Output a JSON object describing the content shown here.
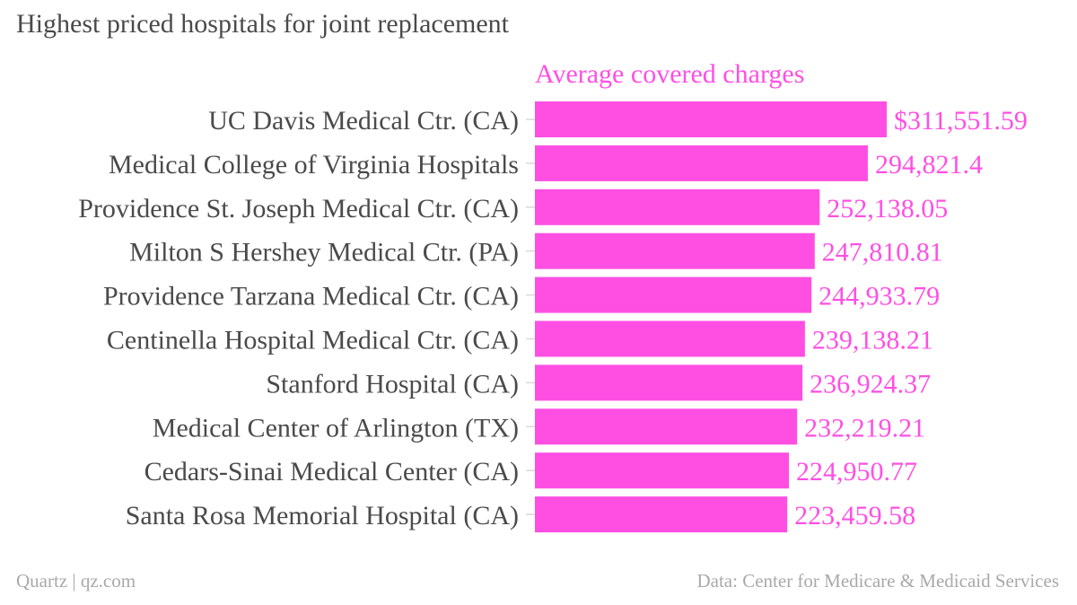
{
  "title": "Highest priced hospitals for joint replacement",
  "footer": {
    "source_left": "Quartz | qz.com",
    "source_right": "Data: Center for Medicare & Medicaid Services"
  },
  "colors": {
    "bar": "#ff4fe3",
    "label": "#4a4a4a",
    "value": "#ff4fe3",
    "tick": "#d9d9d9"
  },
  "chart_data": {
    "type": "bar",
    "orientation": "horizontal",
    "series": [
      {
        "name": "Average covered charges",
        "values": [
          311551.59,
          294821.4,
          252138.05,
          247810.81,
          244933.79,
          239138.21,
          236924.37,
          232219.21,
          224950.77,
          223459.58
        ],
        "labels": [
          "$311,551.59",
          "294,821.4",
          "252,138.05",
          "247,810.81",
          "244,933.79",
          "239,138.21",
          "236,924.37",
          "232,219.21",
          "224,950.77",
          "223,459.58"
        ]
      }
    ],
    "categories": [
      "UC Davis Medical Ctr. (CA)",
      "Medical College of Virginia Hospitals",
      "Providence St. Joseph Medical Ctr. (CA)",
      "Milton S Hershey Medical Ctr. (PA)",
      "Providence Tarzana Medical Ctr. (CA)",
      "Centinella Hospital Medical Ctr. (CA)",
      "Stanford Hospital (CA)",
      "Medical Center of Arlington (TX)",
      "Cedars-Sinai Medical Center (CA)",
      "Santa Rosa Memorial Hospital (CA)"
    ],
    "xlim": [
      0,
      311551.59
    ],
    "grid": false,
    "legend": "top"
  }
}
